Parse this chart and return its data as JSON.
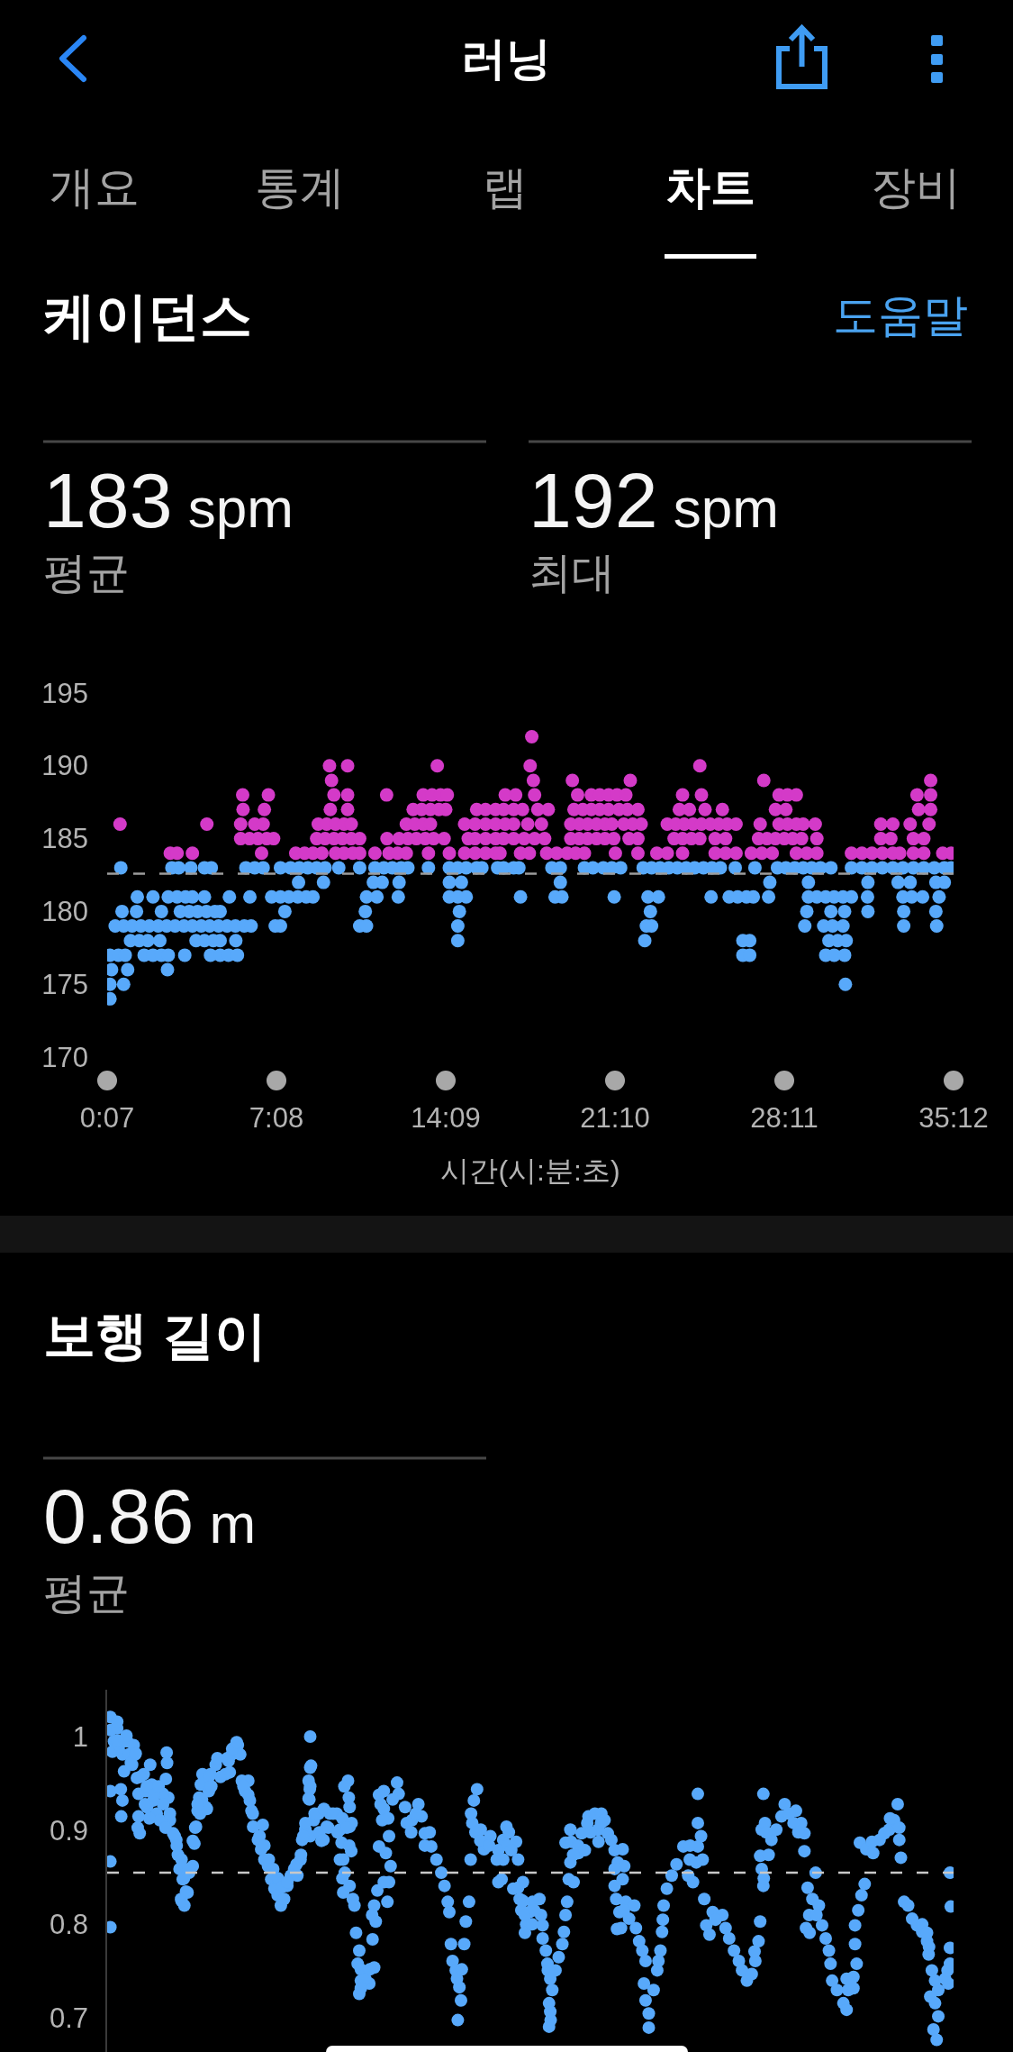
{
  "chart_data": [
    {
      "type": "other",
      "title": "러닝",
      "annotations": [
        "개요",
        "통계",
        "랩",
        "차트",
        "장비"
      ]
    },
    {
      "type": "scatter",
      "title": "케이던스",
      "annotations": [
        "도움말",
        "183 spm",
        "평균",
        "192 spm",
        "최대"
      ],
      "xlabel": "시간(시:분:초)",
      "xlim": [
        7,
        2112
      ],
      "xticks": [
        {
          "value": 7,
          "label": "0:07"
        },
        {
          "value": 428,
          "label": "7:08"
        },
        {
          "value": 849,
          "label": "14:09"
        },
        {
          "value": 1270,
          "label": "21:10"
        },
        {
          "value": 1691,
          "label": "28:11"
        },
        {
          "value": 2112,
          "label": "35:12"
        }
      ],
      "ylim": [
        170,
        195
      ],
      "yticks": [
        170,
        175,
        180,
        185,
        190,
        195
      ],
      "marker": "circle",
      "ref_lines": [
        {
          "axis": "y",
          "value": 182.6,
          "color": "#9c9c9c",
          "line_style": "dashed"
        }
      ],
      "series": [
        {
          "color": "#d43ac8",
          "x": [
            1063,
            560,
            605,
            828,
            1059,
            1481,
            565,
            1067,
            1164,
            1308,
            1640,
            2055,
            344,
            408,
            571,
            605,
            702,
            793,
            815,
            836,
            853,
            997,
            1023,
            1070,
            1177,
            1211,
            1232,
            1254,
            1275,
            1297,
            1438,
            1485,
            1678,
            1699,
            1721,
            2021,
            2055,
            345,
            398,
            562,
            605,
            768,
            789,
            811,
            832,
            849,
            926,
            948,
            973,
            993,
            1018,
            1040,
            1078,
            1104,
            1168,
            1190,
            1211,
            1232,
            1254,
            1280,
            1301,
            1327,
            1430,
            1455,
            1494,
            1537,
            1669,
            1695,
            2025,
            2055,
            39,
            255,
            339,
            374,
            395,
            532,
            553,
            575,
            596,
            614,
            751,
            772,
            793,
            811,
            896,
            922,
            948,
            973,
            997,
            1018,
            1053,
            1087,
            1160,
            1181,
            1202,
            1224,
            1245,
            1262,
            1292,
            1314,
            1335,
            1400,
            1421,
            1442,
            1464,
            1485,
            1507,
            1528,
            1549,
            1571,
            1631,
            1678,
            1699,
            1721,
            1738,
            1768,
            1931,
            1961,
            2004,
            2051,
            339,
            361,
            382,
            404,
            421,
            528,
            549,
            571,
            592,
            614,
            635,
            703,
            733,
            755,
            776,
            798,
            819,
            845,
            905,
            922,
            948,
            973,
            993,
            1018,
            1044,
            1070,
            1095,
            1160,
            1181,
            1202,
            1224,
            1245,
            1267,
            1305,
            1327,
            1417,
            1438,
            1460,
            1481,
            1519,
            1545,
            1627,
            1648,
            1669,
            1691,
            1712,
            1734,
            1772,
            1931,
            1956,
            2012,
            2038,
            164,
            181,
            219,
            391,
            476,
            498,
            519,
            541,
            575,
            596,
            618,
            635,
            673,
            708,
            729,
            751,
            806,
            858,
            896,
            922,
            948,
            973,
            984,
            1035,
            1057,
            1100,
            1125,
            1151,
            1172,
            1194,
            1271,
            1327,
            1374,
            1400,
            1438,
            1519,
            1545,
            1571,
            1609,
            1635,
            1661,
            1721,
            1747,
            1772,
            1858,
            1884,
            1909,
            1935,
            1961,
            1978,
            2012,
            2038,
            2085,
            2106
          ],
          "values": [
            192,
            190,
            190,
            190,
            190,
            190,
            189,
            189,
            189,
            189,
            189,
            189,
            188,
            188,
            188,
            188,
            188,
            188,
            188,
            188,
            188,
            188,
            188,
            188,
            188,
            188,
            188,
            188,
            188,
            188,
            188,
            188,
            188,
            188,
            188,
            188,
            188,
            187,
            187,
            187,
            187,
            187,
            187,
            187,
            187,
            187,
            187,
            187,
            187,
            187,
            187,
            187,
            187,
            187,
            187,
            187,
            187,
            187,
            187,
            187,
            187,
            187,
            187,
            187,
            187,
            187,
            187,
            187,
            187,
            187,
            186,
            186,
            186,
            186,
            186,
            186,
            186,
            186,
            186,
            186,
            186,
            186,
            186,
            186,
            186,
            186,
            186,
            186,
            186,
            186,
            186,
            186,
            186,
            186,
            186,
            186,
            186,
            186,
            186,
            186,
            186,
            186,
            186,
            186,
            186,
            186,
            186,
            186,
            186,
            186,
            186,
            186,
            186,
            186,
            186,
            186,
            186,
            186,
            186,
            186,
            185,
            185,
            185,
            185,
            185,
            185,
            185,
            185,
            185,
            185,
            185,
            185,
            185,
            185,
            185,
            185,
            185,
            185,
            185,
            185,
            185,
            185,
            185,
            185,
            185,
            185,
            185,
            185,
            185,
            185,
            185,
            185,
            185,
            185,
            185,
            185,
            185,
            185,
            185,
            185,
            185,
            185,
            185,
            185,
            185,
            185,
            185,
            185,
            185,
            185,
            185,
            185,
            184,
            184,
            184,
            184,
            184,
            184,
            184,
            184,
            184,
            184,
            184,
            184,
            184,
            184,
            184,
            184,
            184,
            184,
            184,
            184,
            184,
            184,
            184,
            184,
            184,
            184,
            184,
            184,
            184,
            184,
            184,
            184,
            184,
            184,
            184,
            184,
            184,
            184,
            184,
            184,
            184,
            184,
            184,
            184,
            184,
            184,
            184,
            184,
            184,
            184,
            184,
            184,
            184,
            184
          ]
        },
        {
          "color": "#58a9fb",
          "x": [
            41,
            168,
            185,
            215,
            249,
            266,
            352,
            374,
            395,
            438,
            463,
            485,
            506,
            528,
            549,
            583,
            635,
            673,
            695,
            716,
            738,
            755,
            806,
            858,
            879,
            900,
            926,
            939,
            978,
            993,
            1018,
            1031,
            1113,
            1134,
            1194,
            1215,
            1241,
            1262,
            1284,
            1340,
            1361,
            1382,
            1404,
            1425,
            1447,
            1468,
            1490,
            1511,
            1532,
            1569,
            1618,
            1674,
            1695,
            1717,
            1738,
            1759,
            1781,
            1807,
            1858,
            1884,
            1909,
            1935,
            1961,
            1986,
            2012,
            2038,
            2064,
            2089,
            2106,
            483,
            545,
            669,
            691,
            733,
            858,
            888,
            1134,
            1655,
            1751,
            1899,
            1974,
            2004,
            2068,
            2089,
            82,
            121,
            159,
            181,
            202,
            219,
            249,
            311,
            362,
            416,
            438,
            459,
            481,
            502,
            519,
            652,
            678,
            731,
            858,
            879,
            900,
            1035,
            1121,
            1138,
            1268,
            1352,
            1378,
            1509,
            1554,
            1575,
            1597,
            1614,
            1652,
            1751,
            1772,
            1794,
            1815,
            1837,
            1858,
            1898,
            1986,
            2008,
            2035,
            2076,
            44,
            80,
            142,
            189,
            211,
            232,
            254,
            275,
            288,
            449,
            649,
            883,
            1358,
            1747,
            1807,
            1841,
            1899,
            1988,
            2068,
            27,
            48,
            69,
            91,
            112,
            134,
            155,
            176,
            198,
            219,
            241,
            262,
            284,
            305,
            326,
            348,
            365,
            425,
            438,
            635,
            652,
            879,
            1348,
            1361,
            1742,
            1789,
            1811,
            1837,
            1988,
            2070,
            65,
            87,
            108,
            138,
            228,
            249,
            271,
            288,
            327,
            879,
            1344,
            1588,
            1605,
            1802,
            1824,
            1845,
            14,
            35,
            52,
            99,
            121,
            142,
            159,
            200,
            264,
            288,
            309,
            331,
            1588,
            1605,
            1794,
            1815,
            1841,
            18,
            58,
            157,
            14,
            48,
            1843,
            14
          ],
          "values": [
            183,
            183,
            183,
            183,
            183,
            183,
            183,
            183,
            183,
            183,
            183,
            183,
            183,
            183,
            183,
            183,
            183,
            183,
            183,
            183,
            183,
            183,
            183,
            183,
            183,
            183,
            183,
            183,
            183,
            183,
            183,
            183,
            183,
            183,
            183,
            183,
            183,
            183,
            183,
            183,
            183,
            183,
            183,
            183,
            183,
            183,
            183,
            183,
            183,
            183,
            183,
            183,
            183,
            183,
            183,
            183,
            183,
            183,
            183,
            183,
            183,
            183,
            183,
            183,
            183,
            183,
            183,
            183,
            183,
            182,
            182,
            182,
            182,
            182,
            182,
            182,
            182,
            182,
            182,
            182,
            182,
            182,
            182,
            182,
            181,
            181,
            181,
            181,
            181,
            181,
            181,
            181,
            181,
            181,
            181,
            181,
            181,
            181,
            181,
            181,
            181,
            181,
            181,
            181,
            181,
            181,
            181,
            181,
            181,
            181,
            181,
            181,
            181,
            181,
            181,
            181,
            181,
            181,
            181,
            181,
            181,
            181,
            181,
            181,
            181,
            181,
            181,
            181,
            180,
            180,
            180,
            180,
            180,
            180,
            180,
            180,
            180,
            180,
            180,
            180,
            180,
            180,
            180,
            180,
            180,
            180,
            180,
            179,
            179,
            179,
            179,
            179,
            179,
            179,
            179,
            179,
            179,
            179,
            179,
            179,
            179,
            179,
            179,
            179,
            179,
            179,
            179,
            179,
            179,
            179,
            179,
            179,
            179,
            179,
            179,
            179,
            179,
            178,
            178,
            178,
            178,
            178,
            178,
            178,
            178,
            178,
            178,
            178,
            178,
            178,
            178,
            178,
            178,
            177,
            177,
            177,
            177,
            177,
            177,
            177,
            177,
            177,
            177,
            177,
            177,
            177,
            177,
            177,
            177,
            177,
            176,
            176,
            176,
            175,
            175,
            175,
            174
          ]
        }
      ]
    },
    {
      "type": "scatter",
      "title": "보행 길이",
      "annotations": [
        "0.86 m",
        "평균"
      ],
      "xlim": [
        7,
        2112
      ],
      "ylim": [
        0.664,
        1.05
      ],
      "yticks": [
        0.7,
        0.8,
        0.9,
        1
      ],
      "tick_labels": "y",
      "marker": "circle",
      "ref_lines": [
        {
          "axis": "y",
          "value": 0.855,
          "color": "#c8c8c8",
          "line_style": "dashed"
        }
      ],
      "series": [
        {
          "color": "#58a9fb",
          "x": [
            15,
            16,
            24,
            20,
            15,
            15,
            15,
            32,
            37,
            45,
            49,
            41,
            45,
            42,
            57,
            61,
            69,
            73,
            77,
            81,
            85,
            85,
            88,
            98,
            102,
            106,
            114,
            118,
            122,
            130,
            138,
            155,
            156,
            153,
            159,
            146,
            163,
            171,
            179,
            183,
            187,
            195,
            191,
            199,
            207,
            211,
            220,
            224,
            228,
            232,
            236,
            240,
            244,
            252,
            260,
            264,
            277,
            281,
            301,
            309,
            317,
            332,
            338,
            342,
            350,
            358,
            362,
            366,
            370,
            382,
            390,
            394,
            398,
            407,
            415,
            423,
            431,
            439,
            447,
            455,
            464,
            472,
            480,
            488,
            492,
            500,
            512,
            514,
            508,
            511,
            508,
            521,
            533,
            545,
            553,
            561,
            578,
            586,
            590,
            594,
            598,
            594,
            610,
            618,
            622,
            610,
            614,
            606,
            608,
            610,
            626,
            634,
            630,
            638,
            634,
            659,
            671,
            667,
            675,
            671,
            679,
            683,
            687,
            695,
            691,
            708,
            700,
            712,
            708,
            704,
            728,
            732,
            748,
            765,
            781,
            789,
            797,
            813,
            826,
            838,
            846,
            854,
            858,
            862,
            866,
            874,
            883,
            887,
            879,
            895,
            899,
            907,
            911,
            915,
            919,
            927,
            936,
            944,
            960,
            976,
            980,
            992,
            1000,
            1029,
            988,
            1017,
            1033,
            1041,
            1057,
            1065,
            1082,
            1086,
            1090,
            1090,
            1098,
            1102,
            1114,
            1106,
            1110,
            1106,
            1122,
            1130,
            1139,
            1143,
            1147,
            1151,
            1155,
            1159,
            1147,
            1159,
            1167,
            1179,
            1187,
            1204,
            1220,
            1236,
            1228,
            1244,
            1252,
            1261,
            1289,
            1277,
            1269,
            1289,
            1293,
            1273,
            1281,
            1285,
            1297,
            1305,
            1318,
            1322,
            1330,
            1338,
            1346,
            1342,
            1346,
            1354,
            1354,
            1366,
            1375,
            1383,
            1387,
            1391,
            1399,
            1411,
            1423,
            1440,
            1456,
            1452,
            1464,
            1472,
            1476,
            1484,
            1476,
            1476,
            1488,
            1492,
            1497,
            1505,
            1513,
            1537,
            1545,
            1554,
            1566,
            1578,
            1586,
            1598,
            1610,
            1619,
            1627,
            1631,
            1639,
            1635,
            1631,
            1635,
            1639,
            1643,
            1659,
            1671,
            1684,
            1692,
            1720,
            1733,
            1741,
            1741,
            1745,
            1753,
            1761,
            1769,
            1777,
            1785,
            1794,
            1802,
            1806,
            1810,
            1822,
            1838,
            1846,
            1850,
            1863,
            1871,
            1867,
            1867,
            1875,
            1883,
            1891,
            1879,
            1895,
            1912,
            1928,
            1940,
            1952,
            1964,
            1973,
            1977,
            1981,
            1989,
            1999,
            2009,
            2021,
            2034,
            2046,
            2050,
            2058,
            2066,
            2074,
            2054,
            2066,
            2074,
            2062,
            2070,
            2103,
            2105,
            2103,
            2103,
            2099,
            32,
            55,
            66,
            78,
            32,
            89,
            106,
            123,
            146,
            163,
            101,
            135,
            112,
            152,
            175,
            83,
            180,
            192,
            198,
            203,
            192,
            209,
            220,
            226,
            238,
            243,
            260,
            306,
            318,
            329,
            255,
            232,
            266,
            289,
            312,
            346,
            358,
            369,
            386,
            398,
            409,
            420,
            432,
            443,
            455,
            478,
            489,
            500,
            523,
            546,
            569,
            592,
            615,
            512,
            535,
            557,
            580,
            603,
            495,
            540,
            512,
            512,
            510,
            586,
            592,
            609,
            597,
            638,
            649,
            660,
            638,
            666,
            695,
            683,
            695,
            706,
            717,
            752,
            763,
            775,
            809,
            797,
            877,
            889,
            912,
            923,
            935,
            957,
            980,
            1003,
            992,
            1037,
            1049,
            1209,
            1006,
            1024,
            1012,
            1029,
            1041,
            1046,
            1069,
            1046,
            1064,
            1103,
            1109,
            1109,
            1161,
            1178,
            1201,
            1235,
            1269,
            1195,
            1229,
            1166,
            1269,
            1292,
            1275,
            1378,
            1389,
            1457,
            1520,
            1617,
            1646,
            1703,
            1714,
            1726,
            1652,
            1640,
            1749,
            1771,
            1754,
            1863,
            1846,
            1909,
            1954,
            1977,
            2034,
            2046,
            2051,
            2091,
            2097
          ],
          "values": [
            1.021,
            1.007,
            0.995,
            0.984,
            0.942,
            0.867,
            0.797,
            1.009,
            0.991,
            0.981,
            0.963,
            0.944,
            0.932,
            0.915,
            0.995,
            0.981,
            0.97,
            0.991,
            0.981,
            0.956,
            0.939,
            0.915,
            0.897,
            0.96,
            0.942,
            0.925,
            0.97,
            0.949,
            0.932,
            0.918,
            0.911,
            0.983,
            0.972,
            0.955,
            0.935,
            0.939,
            0.911,
            0.897,
            0.89,
            0.874,
            0.859,
            0.848,
            0.827,
            0.82,
            0.834,
            0.855,
            0.862,
            0.886,
            0.904,
            0.921,
            0.935,
            0.949,
            0.96,
            0.925,
            0.942,
            0.96,
            0.97,
            0.977,
            0.96,
            0.974,
            0.981,
            0.991,
            0.981,
            0.953,
            0.942,
            0.953,
            0.932,
            0.921,
            0.904,
            0.89,
            0.88,
            0.906,
            0.869,
            0.862,
            0.848,
            0.838,
            0.831,
            0.82,
            0.827,
            0.841,
            0.852,
            0.859,
            0.852,
            0.869,
            0.89,
            0.901,
            1.0,
            0.969,
            0.953,
            0.944,
            0.934,
            0.911,
            0.918,
            0.89,
            0.904,
            0.918,
            0.918,
            0.901,
            0.887,
            0.869,
            0.855,
            0.834,
            0.841,
            0.827,
            0.82,
            0.904,
            0.878,
            0.953,
            0.935,
            0.925,
            0.791,
            0.772,
            0.758,
            0.74,
            0.726,
            0.737,
            0.754,
            0.784,
            0.803,
            0.82,
            0.836,
            0.883,
            0.928,
            0.942,
            0.911,
            0.894,
            0.876,
            0.862,
            0.845,
            0.824,
            0.951,
            0.939,
            0.925,
            0.911,
            0.928,
            0.915,
            0.897,
            0.883,
            0.869,
            0.855,
            0.841,
            0.824,
            0.813,
            0.779,
            0.761,
            0.751,
            0.733,
            0.719,
            0.698,
            0.779,
            0.803,
            0.824,
            0.869,
            0.908,
            0.932,
            0.944,
            0.901,
            0.88,
            0.894,
            0.869,
            0.845,
            0.89,
            0.904,
            0.869,
            0.848,
            0.838,
            0.827,
            0.845,
            0.813,
            0.824,
            0.827,
            0.81,
            0.799,
            0.785,
            0.772,
            0.758,
            0.73,
            0.716,
            0.698,
            0.691,
            0.751,
            0.765,
            0.779,
            0.792,
            0.81,
            0.824,
            0.848,
            0.866,
            0.887,
            0.901,
            0.845,
            0.876,
            0.897,
            0.915,
            0.918,
            0.918,
            0.901,
            0.911,
            0.897,
            0.89,
            0.88,
            0.866,
            0.841,
            0.848,
            0.862,
            0.827,
            0.813,
            0.796,
            0.824,
            0.806,
            0.82,
            0.796,
            0.782,
            0.772,
            0.761,
            0.737,
            0.719,
            0.705,
            0.69,
            0.73,
            0.751,
            0.772,
            0.792,
            0.82,
            0.838,
            0.852,
            0.864,
            0.883,
            0.869,
            0.852,
            0.845,
            0.866,
            0.883,
            0.894,
            0.908,
            0.939,
            0.869,
            0.827,
            0.799,
            0.789,
            0.813,
            0.81,
            0.796,
            0.785,
            0.772,
            0.761,
            0.751,
            0.74,
            0.747,
            0.761,
            0.782,
            0.803,
            0.939,
            0.901,
            0.873,
            0.859,
            0.841,
            0.908,
            0.89,
            0.901,
            0.915,
            0.928,
            0.921,
            0.908,
            0.897,
            0.878,
            0.796,
            0.81,
            0.827,
            0.855,
            0.82,
            0.799,
            0.785,
            0.772,
            0.758,
            0.74,
            0.73,
            0.716,
            0.709,
            0.73,
            0.744,
            0.758,
            0.779,
            0.799,
            0.815,
            0.831,
            0.843,
            0.887,
            0.88,
            0.876,
            0.89,
            0.897,
            0.901,
            0.911,
            0.928,
            0.89,
            0.871,
            0.824,
            0.82,
            0.806,
            0.799,
            0.792,
            0.782,
            0.768,
            0.751,
            0.74,
            0.73,
            0.723,
            0.716,
            0.702,
            0.688,
            0.677,
            0.855,
            0.819,
            0.775,
            0.758,
            0.737,
            1.016,
            1.001,
            0.972,
            0.982,
            0.996,
            0.957,
            0.947,
            0.938,
            0.928,
            0.918,
            0.928,
            0.947,
            0.913,
            0.903,
            0.894,
            0.903,
            0.884,
            0.869,
            0.849,
            0.835,
            0.825,
            0.859,
            0.889,
            0.903,
            0.918,
            0.933,
            0.957,
            0.977,
            0.987,
            0.994,
            0.923,
            0.928,
            0.947,
            0.957,
            0.962,
            0.947,
            0.938,
            0.918,
            0.894,
            0.884,
            0.869,
            0.859,
            0.849,
            0.84,
            0.845,
            0.864,
            0.874,
            0.908,
            0.918,
            0.923,
            0.918,
            0.913,
            0.908,
            0.894,
            0.898,
            0.903,
            0.898,
            0.903,
            0.894,
            0.889,
            0.967,
            0.947,
            0.933,
            0.869,
            0.849,
            0.884,
            0.947,
            0.752,
            0.742,
            0.752,
            0.732,
            0.81,
            0.845,
            0.938,
            0.923,
            0.913,
            0.933,
            0.908,
            0.898,
            0.918,
            0.898,
            0.884,
            0.742,
            0.752,
            0.918,
            0.898,
            0.889,
            0.884,
            0.879,
            0.884,
            0.869,
            0.815,
            0.8,
            0.898,
            0.898,
            0.888,
            0.879,
            0.839,
            0.825,
            0.81,
            0.815,
            0.791,
            0.8,
            0.751,
            0.742,
            0.707,
            0.888,
            0.884,
            0.908,
            0.908,
            0.879,
            0.879,
            0.888,
            0.874,
            0.859,
            0.815,
            0.795,
            0.761,
            0.805,
            0.884,
            0.805,
            0.771,
            0.898,
            0.918,
            0.908,
            0.898,
            0.874,
            0.849,
            0.839,
            0.81,
            0.791,
            0.732,
            0.742,
            0.888,
            0.913,
            0.903,
            0.8,
            0.791,
            0.776,
            0.742,
            0.751
          ]
        }
      ]
    }
  ]
}
